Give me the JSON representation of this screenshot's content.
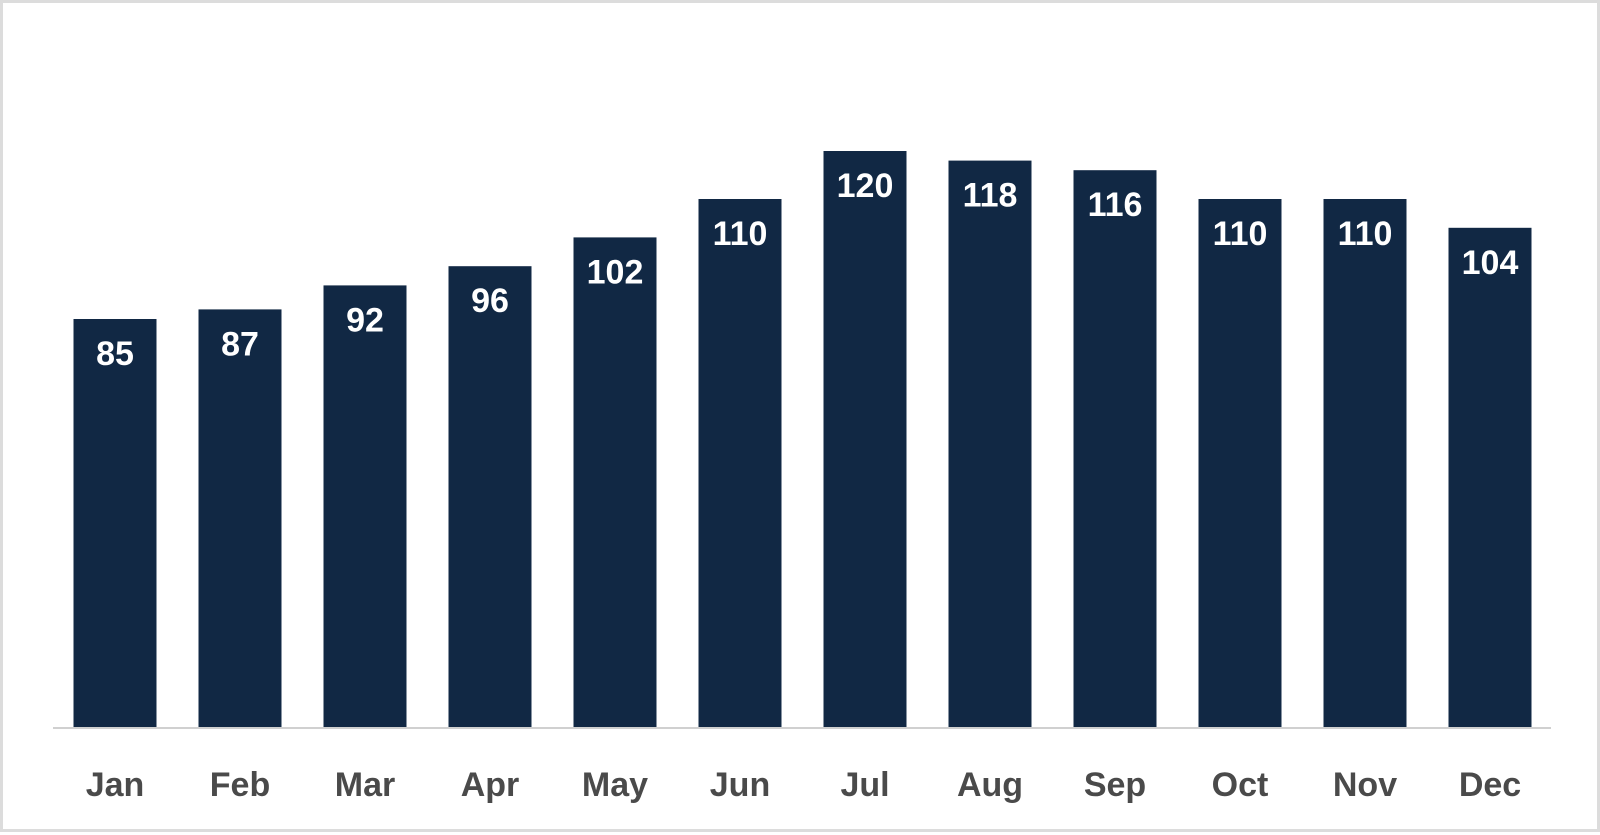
{
  "colors": {
    "bar": "#112844",
    "bar_label": "#ffffff",
    "category_label": "#4a4a4a",
    "axis_line": "#d0d0d0",
    "frame_border": "#dcdcdc",
    "background": "#ffffff"
  },
  "chart_data": {
    "type": "bar",
    "categories": [
      "Jan",
      "Feb",
      "Mar",
      "Apr",
      "May",
      "Jun",
      "Jul",
      "Aug",
      "Sep",
      "Oct",
      "Nov",
      "Dec"
    ],
    "values": [
      85,
      87,
      92,
      96,
      102,
      110,
      120,
      118,
      116,
      110,
      110,
      104
    ],
    "data_labels": [
      "85",
      "87",
      "92",
      "96",
      "102",
      "110",
      "120",
      "118",
      "116",
      "110",
      "110",
      "104"
    ],
    "title": "",
    "xlabel": "",
    "ylabel": "",
    "ylim": [
      0,
      120
    ],
    "grid": false,
    "legend": "none"
  }
}
